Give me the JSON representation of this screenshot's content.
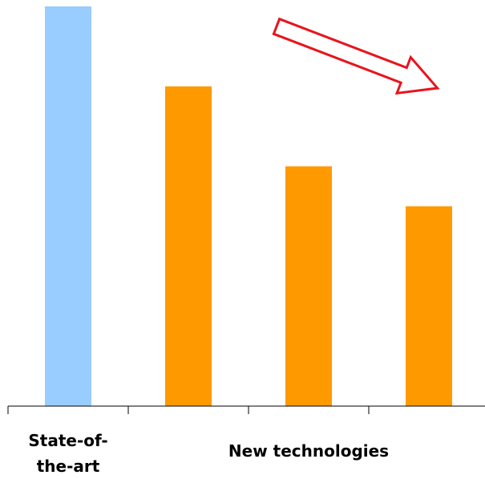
{
  "chart_data": {
    "type": "bar",
    "groups": [
      {
        "label": "State-of-the-art",
        "color": "#99ccff",
        "values": [
          100
        ]
      },
      {
        "label": "New technologies",
        "color": "#ff9900",
        "values": [
          80,
          60,
          50
        ]
      }
    ]
  }
}
